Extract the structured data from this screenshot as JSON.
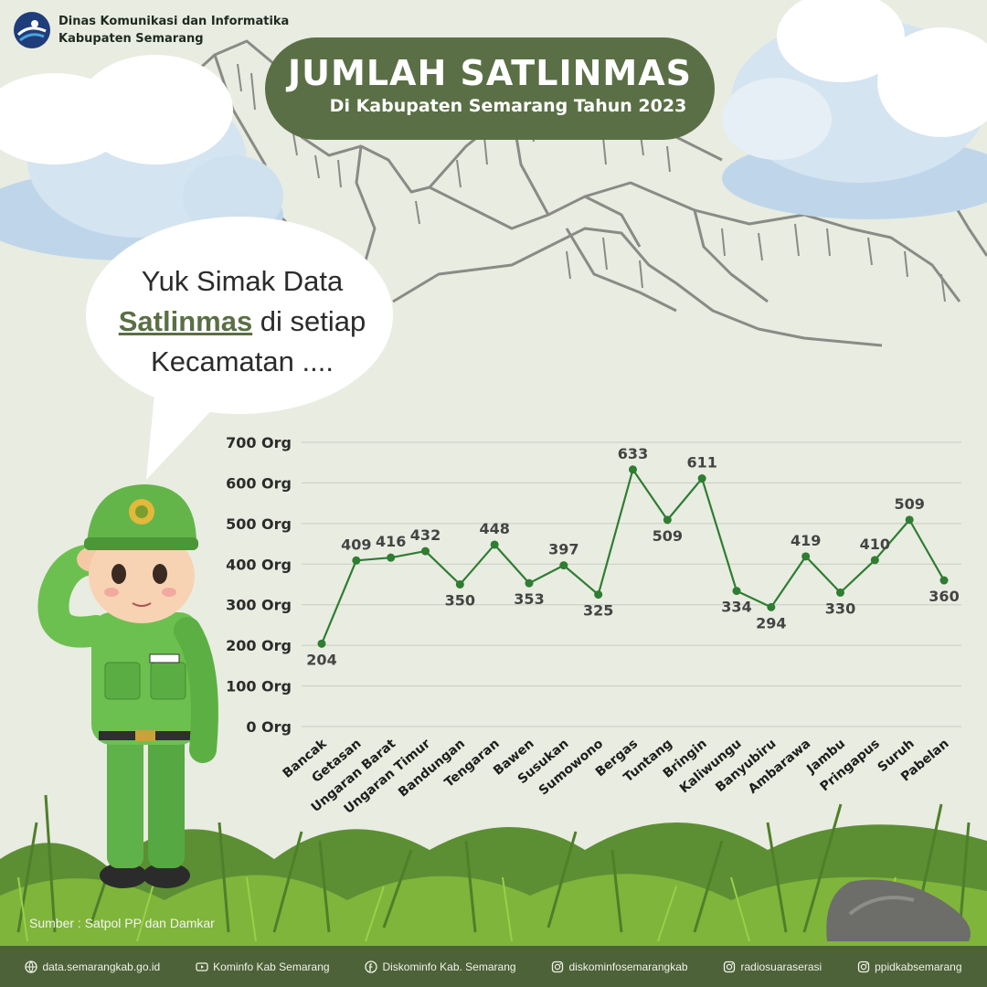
{
  "org": {
    "line1": "Dinas Komunikasi dan Informatika",
    "line2": "Kabupaten Semarang"
  },
  "header": {
    "title": "JUMLAH SATLINMAS",
    "subtitle": "Di Kabupaten Semarang Tahun 2023"
  },
  "bubble": {
    "line1": "Yuk Simak Data",
    "highlight": "Satlinmas",
    "line2_rest": " di setiap",
    "line3": "Kecamatan ...."
  },
  "chart_data": {
    "type": "line",
    "categories": [
      "Bancak",
      "Getasan",
      "Ungaran Barat",
      "Ungaran Timur",
      "Bandungan",
      "Tengaran",
      "Bawen",
      "Susukan",
      "Sumowono",
      "Bergas",
      "Tuntang",
      "Bringin",
      "Kaliwungu",
      "Banyubiru",
      "Ambarawa",
      "Jambu",
      "Pringapus",
      "Suruh",
      "Pabelan"
    ],
    "values": [
      204,
      409,
      416,
      432,
      350,
      448,
      353,
      397,
      325,
      633,
      509,
      611,
      334,
      294,
      419,
      330,
      410,
      509,
      360
    ],
    "y_ticks": [
      "0 Org",
      "100 Org",
      "200 Org",
      "300 Org",
      "400 Org",
      "500 Org",
      "600 Org",
      "700 Org"
    ],
    "ylim": [
      0,
      700
    ],
    "grid": true,
    "line_color": "#2e7d32"
  },
  "source": "Sumber : Satpol PP dan Damkar",
  "footer": {
    "items": [
      {
        "icon": "globe-icon",
        "label": "data.semarangkab.go.id"
      },
      {
        "icon": "youtube-icon",
        "label": "Kominfo Kab Semarang"
      },
      {
        "icon": "facebook-icon",
        "label": "Diskominfo Kab. Semarang"
      },
      {
        "icon": "instagram-icon",
        "label": "diskominfosemarangkab"
      },
      {
        "icon": "instagram-icon",
        "label": "radiosuaraserasi"
      },
      {
        "icon": "instagram-icon",
        "label": "ppidkabsemarang"
      }
    ]
  },
  "colors": {
    "background": "#e9ece1",
    "accent": "#5a6f45",
    "line": "#2e7d32",
    "footer": "#4d6238"
  }
}
